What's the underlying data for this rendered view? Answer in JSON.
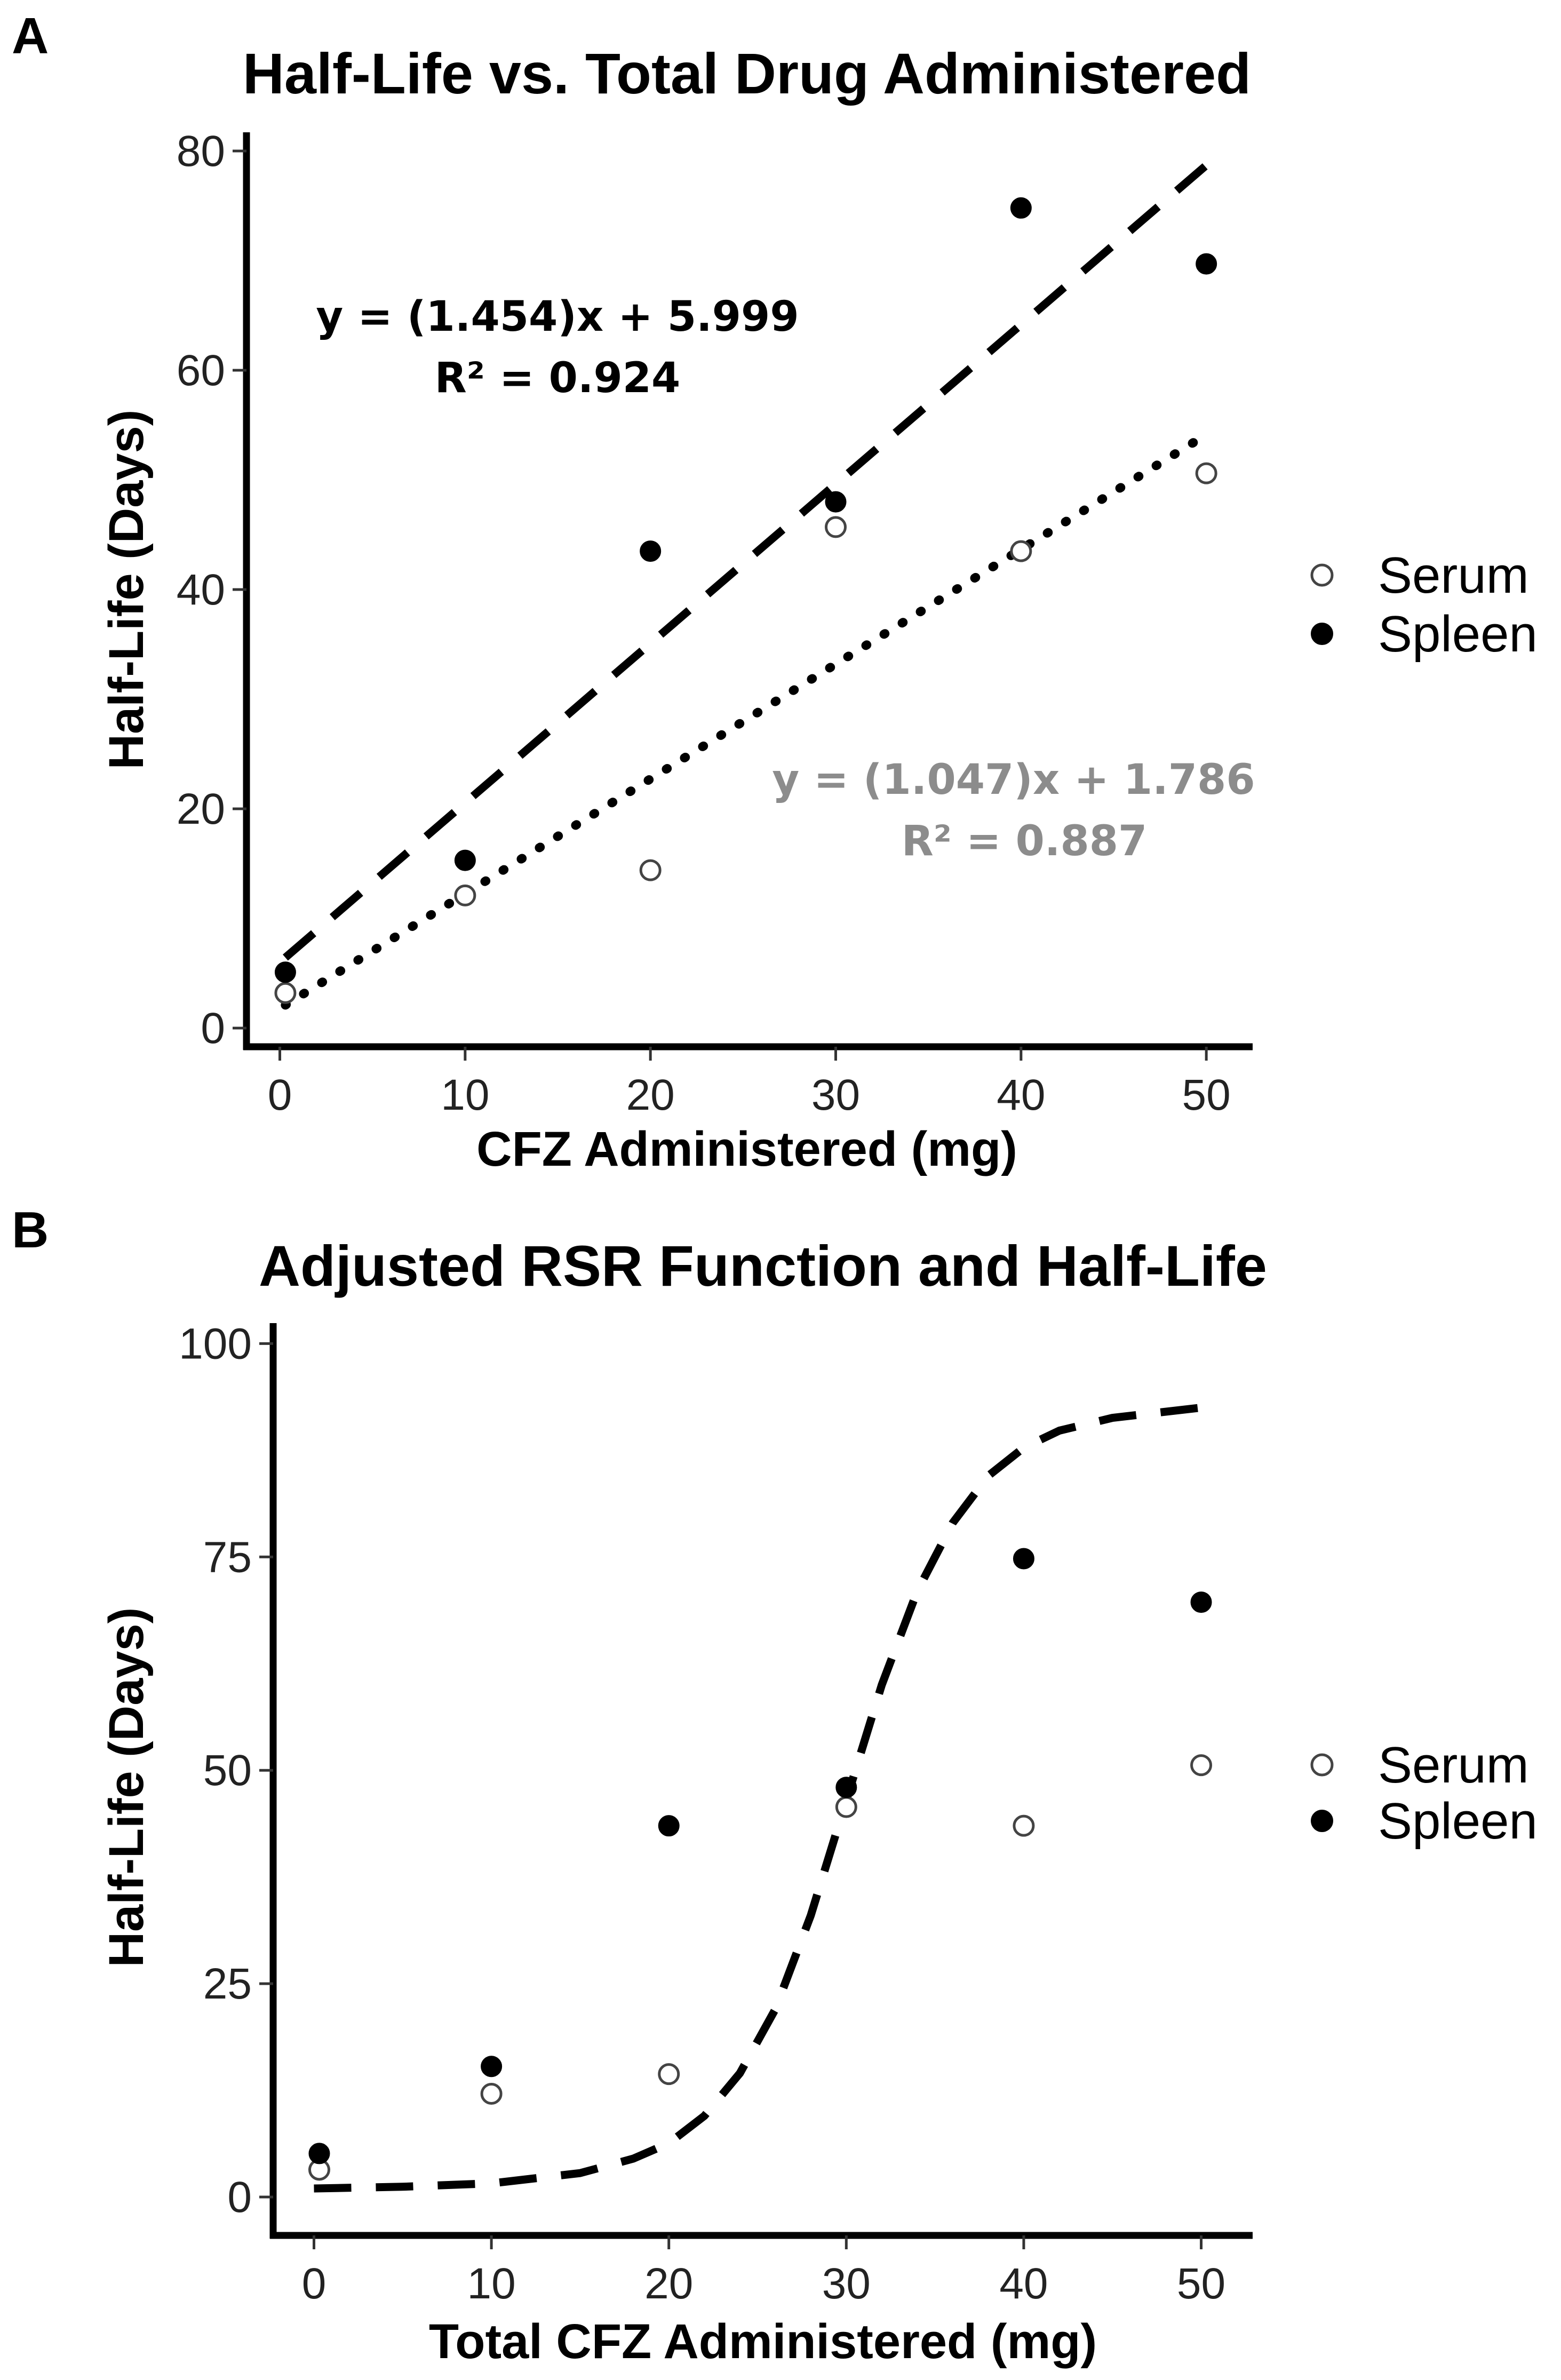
{
  "chart_data": [
    {
      "panel": "A",
      "type": "scatter",
      "title": "Half-Life vs. Total Drug Administered",
      "xlabel": "CFZ Administered (mg)",
      "ylabel": "Half-Life (Days)",
      "xlim": [
        -1.8,
        52.5
      ],
      "ylim": [
        -1.7,
        81.7
      ],
      "xticks": [
        0,
        10,
        20,
        30,
        40,
        50
      ],
      "yticks": [
        0,
        20,
        40,
        60,
        80
      ],
      "series": [
        {
          "name": "Serum",
          "marker": "open-circle",
          "x": [
            0.3,
            10,
            20,
            30,
            40,
            50
          ],
          "y": [
            3.2,
            12.1,
            14.4,
            45.7,
            43.5,
            50.6
          ]
        },
        {
          "name": "Spleen",
          "marker": "filled-circle",
          "x": [
            0.3,
            10,
            20,
            30,
            40,
            50
          ],
          "y": [
            5.1,
            15.3,
            43.5,
            48.0,
            74.8,
            69.7
          ]
        }
      ],
      "fits": [
        {
          "series": "Spleen",
          "kind": "linear",
          "slope": 1.454,
          "intercept": 5.999,
          "style": "dashed",
          "color": "#000000",
          "x_range": [
            0.3,
            50
          ]
        },
        {
          "series": "Serum",
          "kind": "linear",
          "slope": 1.047,
          "intercept": 1.786,
          "style": "dotted",
          "color": "#000000",
          "x_range": [
            0.3,
            50
          ]
        }
      ],
      "annotations": [
        {
          "line1": "y = (1.454)x + 5.999",
          "line2": "R² = 0.924",
          "color": "#000000",
          "position": "upper-left"
        },
        {
          "line1": "y = (1.047)x + 1.786",
          "line2": "R² = 0.887",
          "color": "#8c8c8c",
          "position": "lower-right"
        }
      ],
      "legend": {
        "position": "right",
        "entries": [
          "Serum",
          "Spleen"
        ]
      }
    },
    {
      "panel": "B",
      "type": "scatter",
      "title": "Adjusted RSR Function and Half-Life",
      "xlabel": "Total CFZ Administered (mg)",
      "ylabel": "Half-Life (Days)",
      "xlim": [
        -2.3,
        52.9
      ],
      "ylim": [
        -4.5,
        102.4
      ],
      "xticks": [
        0,
        10,
        20,
        30,
        40,
        50
      ],
      "yticks": [
        0,
        25,
        50,
        75,
        100
      ],
      "series": [
        {
          "name": "Serum",
          "marker": "open-circle",
          "x": [
            0.3,
            10,
            20,
            30,
            40,
            50
          ],
          "y": [
            3.2,
            12.1,
            14.4,
            45.7,
            43.5,
            50.6
          ]
        },
        {
          "name": "Spleen",
          "marker": "filled-circle",
          "x": [
            0.3,
            10,
            20,
            30,
            40,
            50
          ],
          "y": [
            5.1,
            15.3,
            43.5,
            48.0,
            74.8,
            69.7
          ]
        }
      ],
      "fits": [
        {
          "kind": "sigmoid",
          "style": "dashed",
          "color": "#000000",
          "x": [
            0,
            5,
            10,
            15,
            18,
            20,
            22,
            24,
            26,
            28,
            30,
            32,
            34,
            36,
            38,
            40,
            42,
            45,
            50
          ],
          "y": [
            1.0,
            1.2,
            1.6,
            2.8,
            4.5,
            6.3,
            9.5,
            14.5,
            22.0,
            33.0,
            46.5,
            60.0,
            71.0,
            79.0,
            84.5,
            87.8,
            89.8,
            91.3,
            92.5
          ]
        }
      ],
      "legend": {
        "position": "right",
        "entries": [
          "Serum",
          "Spleen"
        ]
      }
    }
  ]
}
